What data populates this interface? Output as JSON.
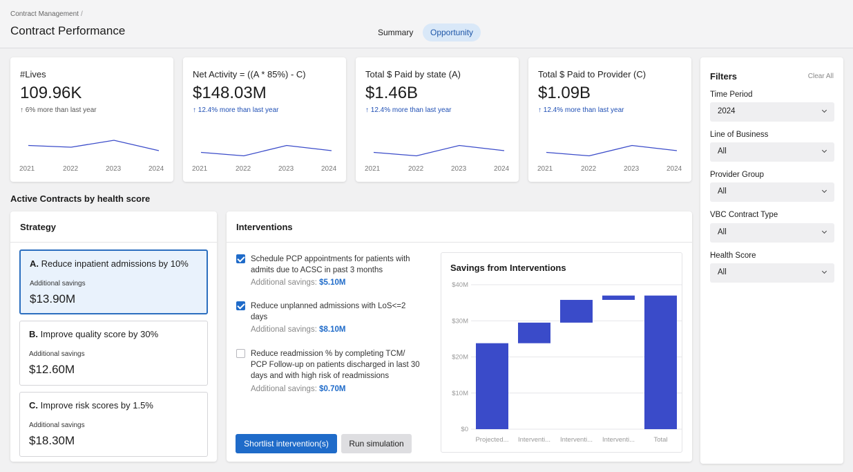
{
  "header": {
    "breadcrumb": "Contract Management",
    "breadcrumb_sep": "/",
    "title": "Contract Performance",
    "tabs": [
      {
        "label": "Summary",
        "active": false
      },
      {
        "label": "Opportunity",
        "active": true
      }
    ]
  },
  "kpis": [
    {
      "title": "#Lives",
      "value": "109.96K",
      "change": "6% more than last year",
      "change_color": "gray",
      "years": [
        "2021",
        "2022",
        "2023",
        "2024"
      ]
    },
    {
      "title": "Net Activity = ((A * 85%) - C)",
      "value": "$148.03M",
      "change": "12.4% more than last year",
      "change_color": "blue",
      "years": [
        "2021",
        "2022",
        "2023",
        "2024"
      ]
    },
    {
      "title": "Total $ Paid by state (A)",
      "value": "$1.46B",
      "change": "12.4% more than last year",
      "change_color": "blue",
      "years": [
        "2021",
        "2022",
        "2023",
        "2024"
      ]
    },
    {
      "title": "Total $ Paid to Provider  (C)",
      "value": "$1.09B",
      "change": "12.4% more than last year",
      "change_color": "blue",
      "years": [
        "2021",
        "2022",
        "2023",
        "2024"
      ]
    }
  ],
  "section_title": "Active Contracts by health score",
  "strategy": {
    "title": "Strategy",
    "items": [
      {
        "prefix": "A.",
        "label": "Reduce inpatient admissions by 10%",
        "sub": "Additional savings",
        "value": "$13.90M",
        "selected": true
      },
      {
        "prefix": "B.",
        "label": "Improve quality score by 30%",
        "sub": "Additional savings",
        "value": "$12.60M",
        "selected": false
      },
      {
        "prefix": "C.",
        "label": "Improve risk scores by 1.5%",
        "sub": "Additional savings",
        "value": "$18.30M",
        "selected": false
      }
    ]
  },
  "interventions": {
    "title": "Interventions",
    "savings_label": "Additional savings:",
    "items": [
      {
        "text": "Schedule PCP appointments for patients with admits due to ACSC in past 3 months",
        "savings": "$5.10M",
        "checked": true
      },
      {
        "text": "Reduce unplanned admissions with LoS<=2 days",
        "savings": "$8.10M",
        "checked": true
      },
      {
        "text": "Reduce readmission % by completing TCM/ PCP Follow-up on patients discharged in last 30 days and with high risk of readmissions",
        "savings": "$0.70M",
        "checked": false
      }
    ],
    "primary_button": "Shortlist intervention(s)",
    "secondary_button": "Run simulation"
  },
  "chart_data": {
    "type": "bar",
    "subtype": "waterfall",
    "title": "Savings from Interventions",
    "categories": [
      "Projected...",
      "Interventi...",
      "Interventi...",
      "Interventi...",
      "Total"
    ],
    "series": [
      {
        "values": [
          [
            0,
            23.8
          ],
          [
            23.8,
            29.5
          ],
          [
            29.5,
            35.8
          ],
          [
            35.8,
            37.0
          ],
          [
            0,
            37.0
          ]
        ]
      }
    ],
    "yticks": [
      "$0",
      "$10M",
      "$20M",
      "$30M",
      "$40M"
    ],
    "ylim": [
      0,
      40
    ],
    "grid": true,
    "bar_color": "#3a4bc9"
  },
  "kpi_sparks": [
    [
      0.55,
      0.6,
      0.4,
      0.7
    ],
    [
      0.75,
      0.85,
      0.55,
      0.7
    ],
    [
      0.75,
      0.85,
      0.55,
      0.7
    ],
    [
      0.75,
      0.85,
      0.55,
      0.7
    ]
  ],
  "filters": {
    "title": "Filters",
    "clear": "Clear All",
    "fields": [
      {
        "label": "Time Period",
        "value": "2024"
      },
      {
        "label": "Line of Business",
        "value": "All"
      },
      {
        "label": "Provider Group",
        "value": "All"
      },
      {
        "label": "VBC Contract Type",
        "value": "All"
      },
      {
        "label": "Health Score",
        "value": "All"
      }
    ]
  },
  "colors": {
    "accent": "#1f6bc9",
    "bar": "#3a4bc9",
    "spark": "#3a4bc9"
  }
}
